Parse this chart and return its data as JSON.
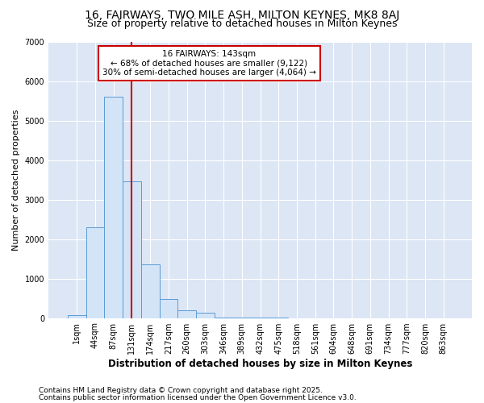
{
  "title1": "16, FAIRWAYS, TWO MILE ASH, MILTON KEYNES, MK8 8AJ",
  "title2": "Size of property relative to detached houses in Milton Keynes",
  "xlabel": "Distribution of detached houses by size in Milton Keynes",
  "ylabel": "Number of detached properties",
  "categories": [
    "1sqm",
    "44sqm",
    "87sqm",
    "131sqm",
    "174sqm",
    "217sqm",
    "260sqm",
    "303sqm",
    "346sqm",
    "389sqm",
    "432sqm",
    "475sqm",
    "518sqm",
    "561sqm",
    "604sqm",
    "648sqm",
    "691sqm",
    "734sqm",
    "777sqm",
    "820sqm",
    "863sqm"
  ],
  "bar_heights": [
    70,
    2300,
    5600,
    3450,
    1350,
    480,
    200,
    130,
    20,
    8,
    4,
    2,
    0,
    0,
    0,
    0,
    0,
    0,
    0,
    0,
    0
  ],
  "bar_color": "#d4e4f7",
  "bar_edge_color": "#5b9bd5",
  "plot_bg_color": "#dce6f5",
  "fig_bg_color": "#ffffff",
  "grid_color": "#ffffff",
  "red_line_x": 3.0,
  "annotation_title": "16 FAIRWAYS: 143sqm",
  "annotation_line1": "← 68% of detached houses are smaller (9,122)",
  "annotation_line2": "30% of semi-detached houses are larger (4,064) →",
  "annotation_box_facecolor": "#ffffff",
  "annotation_box_edgecolor": "#cc0000",
  "red_line_color": "#cc0000",
  "ylim": [
    0,
    7000
  ],
  "yticks": [
    0,
    1000,
    2000,
    3000,
    4000,
    5000,
    6000,
    7000
  ],
  "footnote1": "Contains HM Land Registry data © Crown copyright and database right 2025.",
  "footnote2": "Contains public sector information licensed under the Open Government Licence v3.0.",
  "title1_fontsize": 10,
  "title2_fontsize": 9,
  "annotation_fontsize": 7.5,
  "xlabel_fontsize": 8.5,
  "ylabel_fontsize": 8,
  "tick_fontsize": 7,
  "footnote_fontsize": 6.5
}
